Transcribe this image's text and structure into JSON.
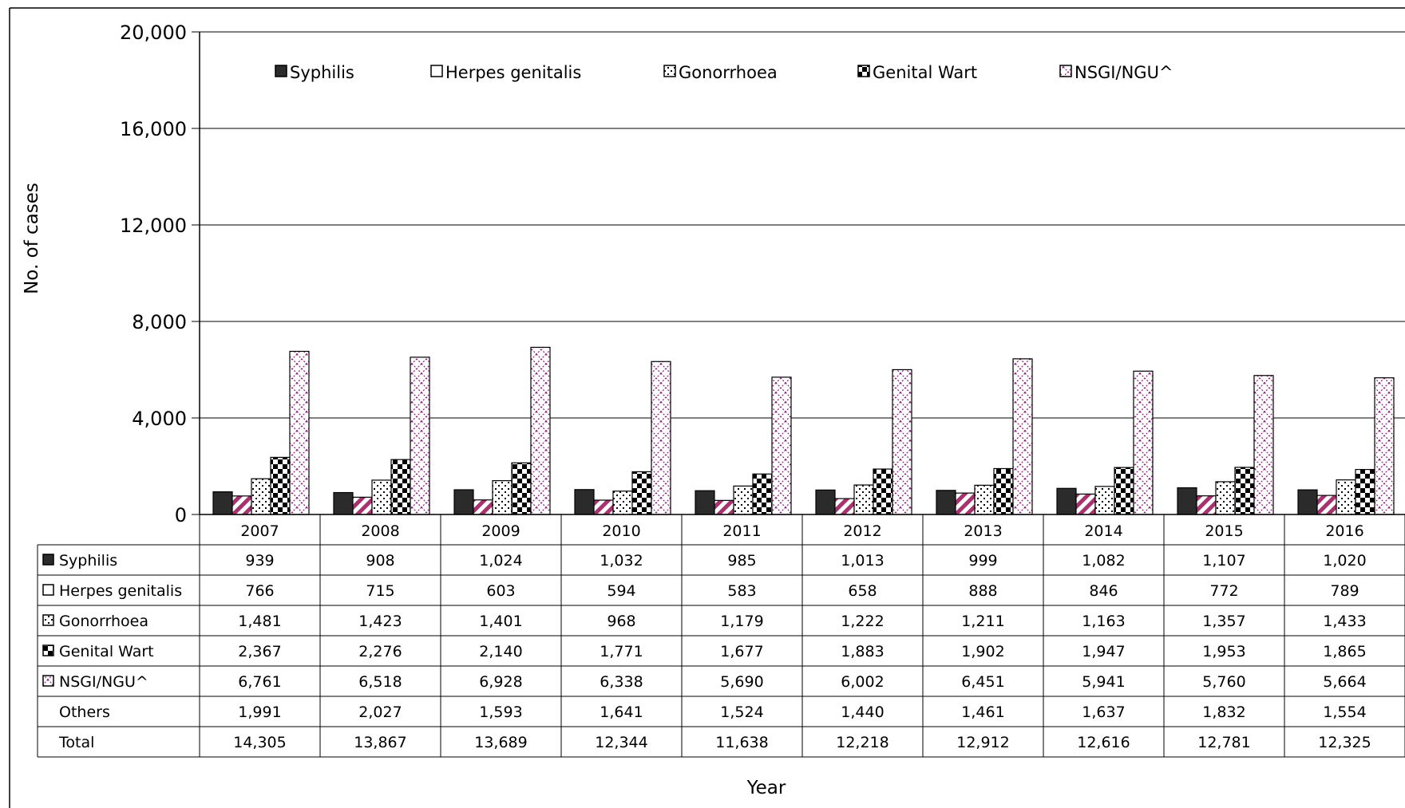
{
  "chart_data": {
    "type": "bar",
    "title": "",
    "xlabel": "Year",
    "ylabel": "No. of cases",
    "ylim": [
      0,
      20000
    ],
    "yticks": [
      0,
      4000,
      8000,
      12000,
      16000,
      20000
    ],
    "ytick_labels": [
      "0",
      "4,000",
      "8,000",
      "12,000",
      "16,000",
      "20,000"
    ],
    "grid": true,
    "legend_position": "top",
    "categories": [
      "2007",
      "2008",
      "2009",
      "2010",
      "2011",
      "2012",
      "2013",
      "2014",
      "2015",
      "2016"
    ],
    "series": [
      {
        "name": "Syphilis",
        "values": [
          939,
          908,
          1024,
          1032,
          985,
          1013,
          999,
          1082,
          1107,
          1020
        ],
        "labels": [
          "939",
          "908",
          "1,024",
          "1,032",
          "985",
          "1,013",
          "999",
          "1,082",
          "1,107",
          "1,020"
        ]
      },
      {
        "name": "Herpes genitalis",
        "values": [
          766,
          715,
          603,
          594,
          583,
          658,
          888,
          846,
          772,
          789
        ],
        "labels": [
          "766",
          "715",
          "603",
          "594",
          "583",
          "658",
          "888",
          "846",
          "772",
          "789"
        ]
      },
      {
        "name": "Gonorrhoea",
        "values": [
          1481,
          1423,
          1401,
          968,
          1179,
          1222,
          1211,
          1163,
          1357,
          1433
        ],
        "labels": [
          "1,481",
          "1,423",
          "1,401",
          "968",
          "1,179",
          "1,222",
          "1,211",
          "1,163",
          "1,357",
          "1,433"
        ]
      },
      {
        "name": "Genital Wart",
        "values": [
          2367,
          2276,
          2140,
          1771,
          1677,
          1883,
          1902,
          1947,
          1953,
          1865
        ],
        "labels": [
          "2,367",
          "2,276",
          "2,140",
          "1,771",
          "1,677",
          "1,883",
          "1,902",
          "1,947",
          "1,953",
          "1,865"
        ]
      },
      {
        "name": "NSGI/NGU^",
        "values": [
          6761,
          6518,
          6928,
          6338,
          5690,
          6002,
          6451,
          5941,
          5760,
          5664
        ],
        "labels": [
          "6,761",
          "6,518",
          "6,928",
          "6,338",
          "5,690",
          "6,002",
          "6,451",
          "5,941",
          "5,760",
          "5,664"
        ]
      }
    ],
    "table_rows": [
      {
        "name": "Others",
        "labels": [
          "1,991",
          "2,027",
          "1,593",
          "1,641",
          "1,524",
          "1,440",
          "1,461",
          "1,637",
          "1,832",
          "1,554"
        ]
      },
      {
        "name": "Total",
        "labels": [
          "14,305",
          "13,867",
          "13,689",
          "12,344",
          "11,638",
          "12,218",
          "12,912",
          "12,616",
          "12,781",
          "12,325"
        ]
      }
    ]
  }
}
